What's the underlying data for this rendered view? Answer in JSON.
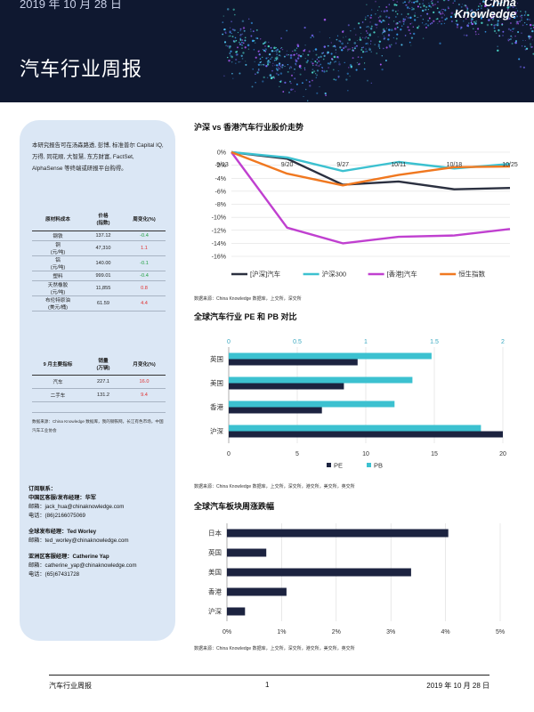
{
  "header": {
    "date": "2019 年 10 月 28 日",
    "title": "汽车行业周报",
    "logo_line1": "China",
    "logo_line2": "Knowledge"
  },
  "sidebar": {
    "intro": "本研究报告可在汤森路透, 彭博, 标准普尔 Capital IQ, 万得, 同花顺, 大智慧, 东方财富, FactSet, AlphaSense 等终端或研报平台购得。",
    "materials": {
      "headers": [
        "原材料成本",
        "价格\n(指数)",
        "周变化(%)"
      ],
      "rows": [
        {
          "name": "钢铁",
          "price": "137.12",
          "change": "-0.4",
          "dir": "dn"
        },
        {
          "name": "铜\n(元/吨)",
          "price": "47,310",
          "change": "1.1",
          "dir": "up"
        },
        {
          "name": "铝\n(元/吨)",
          "price": "140.00",
          "change": "-0.1",
          "dir": "dn"
        },
        {
          "name": "塑料",
          "price": "999.01",
          "change": "-0.4",
          "dir": "dn"
        },
        {
          "name": "天然橡胶\n(元/吨)",
          "price": "11,855",
          "change": "0.8",
          "dir": "up"
        },
        {
          "name": "布伦特原油\n(美元/桶)",
          "price": "61.59",
          "change": "4.4",
          "dir": "up"
        }
      ]
    },
    "indicators": {
      "headers": [
        "9 月主要指标",
        "销量\n(万辆)",
        "月变化(%)"
      ],
      "rows": [
        {
          "name": "汽车",
          "value": "227.1",
          "change": "16.0",
          "dir": "up"
        },
        {
          "name": "二手车",
          "value": "131.2",
          "change": "9.4",
          "dir": "up"
        }
      ]
    },
    "source": "数据来源：China Knowledge 数据库，我的钢铁网，长江有色市场，中国汽车工业协会",
    "contacts": [
      {
        "heading": "订阅联系：",
        "lines": []
      },
      {
        "heading": "中国区客服/发布经理：华军",
        "lines": [
          "邮箱：jack_hua@chinaknowledge.com",
          "电话：(86)2166075069"
        ]
      },
      {
        "heading": "全球发布经理：Ted Worley",
        "lines": [
          "邮箱：ted_worley@chinaknowledge.com"
        ]
      },
      {
        "heading": "亚洲区客服经理：Catherine Yap",
        "lines": [
          "邮箱：catherine_yap@chinaknowledge.com",
          "电话：(65)67431728"
        ]
      }
    ]
  },
  "sections": {
    "chart1_title": "沪深 vs 香港汽车行业股价走势",
    "chart1_note": "数据来源：China Knowledge 数据库，上交所，深交所",
    "chart2_title": "全球汽车行业 PE 和 PB 对比",
    "chart2_note": "数据来源：China Knowledge 数据库，上交所，深交所，港交所，美交所，英交所",
    "chart3_title": "全球汽车板块周涨跌幅",
    "chart3_note": "数据来源：China Knowledge 数据库，上交所，深交所，港交所，美交所，英交所"
  },
  "footer": {
    "left": "汽车行业周报",
    "page": "1",
    "right": "2019 年 10 月 28 日"
  },
  "chart_data": [
    {
      "type": "line",
      "title": "沪深 vs 香港汽车行业股价走势",
      "x": [
        "9/13",
        "9/20",
        "9/27",
        "10/11",
        "10/18",
        "10/25"
      ],
      "ylim": [
        -16,
        0
      ],
      "yticks": [
        "0%",
        "-2%",
        "-4%",
        "-6%",
        "-8%",
        "-10%",
        "-12%",
        "-14%",
        "-16%"
      ],
      "series": [
        {
          "name": "[沪深]汽车",
          "color": "#2b3040",
          "values": [
            0,
            -1.0,
            -5.0,
            -4.5,
            -5.7,
            -5.5
          ]
        },
        {
          "name": "沪深300",
          "color": "#3cc1d0",
          "values": [
            0,
            -0.8,
            -2.9,
            -1.5,
            -2.5,
            -1.8
          ]
        },
        {
          "name": "[香港]汽车",
          "color": "#c040d0",
          "values": [
            0,
            -11.6,
            -14.0,
            -13.0,
            -12.8,
            -11.8
          ]
        },
        {
          "name": "恒生指数",
          "color": "#f07820",
          "values": [
            0,
            -3.3,
            -5.1,
            -3.5,
            -2.3,
            -2.2
          ]
        }
      ],
      "legend": "bottom"
    },
    {
      "type": "bar",
      "orientation": "horizontal",
      "title": "全球汽车行业 PE 和 PB 对比",
      "categories": [
        "英国",
        "美国",
        "香港",
        "沪深"
      ],
      "series": [
        {
          "name": "PE",
          "color": "#1c2340",
          "axis": "bottom",
          "values": [
            9.4,
            8.4,
            6.8,
            20.0
          ]
        },
        {
          "name": "PB",
          "color": "#3cc1d0",
          "axis": "top",
          "values": [
            1.48,
            1.34,
            1.21,
            1.84
          ]
        }
      ],
      "bottom_ticks": [
        "0",
        "5",
        "10",
        "15",
        "20"
      ],
      "top_ticks": [
        "0",
        "0.5",
        "1",
        "1.5",
        "2"
      ],
      "xlim_bottom": [
        0,
        20
      ],
      "xlim_top": [
        0,
        2
      ],
      "legend": "bottom"
    },
    {
      "type": "bar",
      "orientation": "horizontal",
      "title": "全球汽车板块周涨跌幅",
      "categories": [
        "日本",
        "英国",
        "美国",
        "香港",
        "沪深"
      ],
      "values": [
        4.05,
        0.72,
        3.37,
        1.09,
        0.33
      ],
      "color": "#1c2340",
      "ticks": [
        "0%",
        "1%",
        "2%",
        "3%",
        "4%",
        "5%"
      ],
      "xlim": [
        0,
        5
      ]
    }
  ]
}
